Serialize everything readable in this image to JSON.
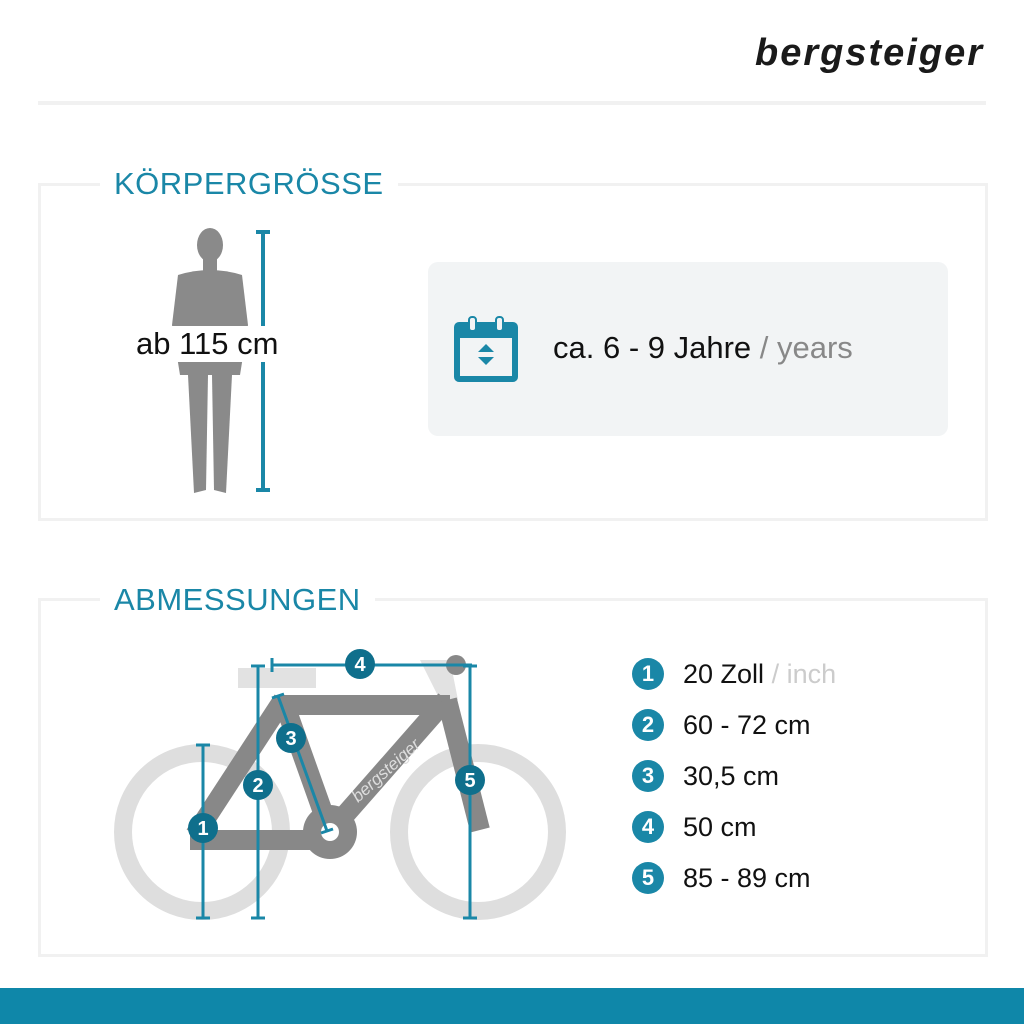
{
  "brand": "bergsteiger",
  "accent": "#1a87a7",
  "body_height": {
    "title": "KÖRPERGRÖSSE",
    "value": "ab 115 cm",
    "age": "ca. 6 - 9 Jahre",
    "age_en": "/ years",
    "icon": "calendar-icon"
  },
  "dimensions": {
    "title": "ABMESSUNGEN",
    "frame_label": "bergsteiger",
    "items": [
      {
        "n": "1",
        "value": "20 Zoll",
        "unit_en": "/ inch"
      },
      {
        "n": "2",
        "value": "60 - 72 cm"
      },
      {
        "n": "3",
        "value": "30,5 cm"
      },
      {
        "n": "4",
        "value": "50 cm"
      },
      {
        "n": "5",
        "value": "85 - 89 cm"
      }
    ]
  }
}
